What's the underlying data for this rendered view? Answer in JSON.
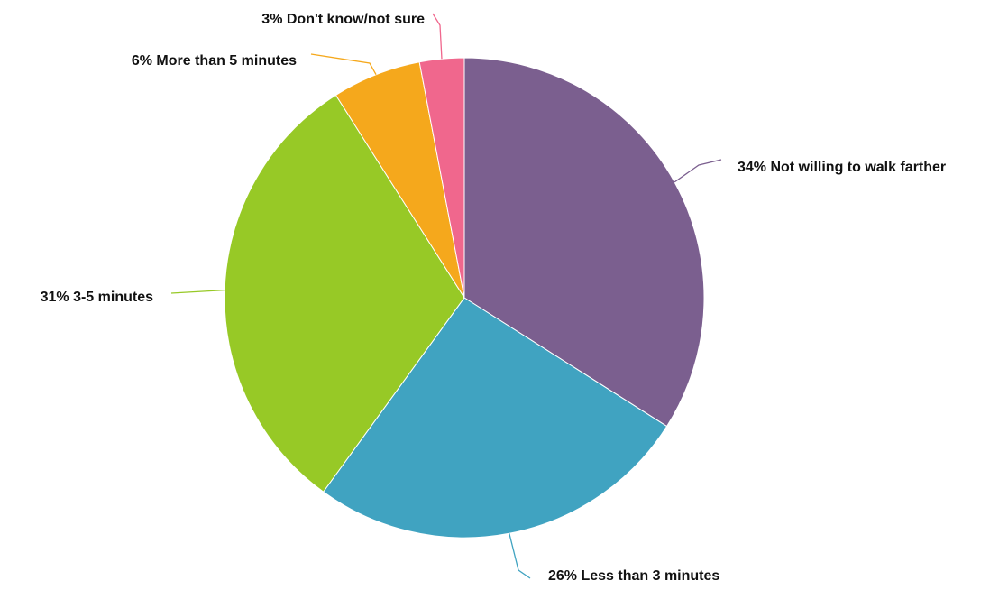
{
  "chart_data": {
    "type": "pie",
    "title": "",
    "slices": [
      {
        "label": "34% Not willing to walk farther",
        "value": 34,
        "color": "#7b5f8f"
      },
      {
        "label": "26% Less than 3 minutes",
        "value": 26,
        "color": "#40a3c1"
      },
      {
        "label": "31% 3-5 minutes",
        "value": 31,
        "color": "#97c926"
      },
      {
        "label": "6% More than 5 minutes",
        "value": 6,
        "color": "#f5a81c"
      },
      {
        "label": "3% Don't know/not sure",
        "value": 3,
        "color": "#f0678d"
      }
    ]
  }
}
